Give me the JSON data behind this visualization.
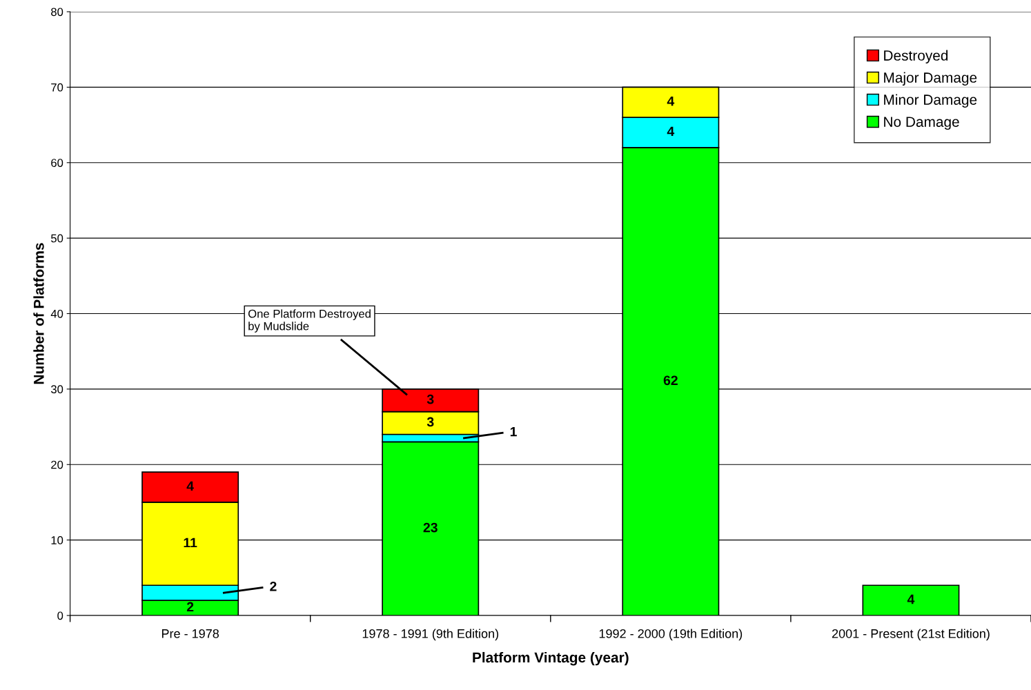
{
  "chart_data": {
    "type": "bar",
    "stacked": true,
    "xlabel": "Platform Vintage (year)",
    "ylabel": "Number of Platforms",
    "categories": [
      "Pre - 1978",
      "1978 - 1991 (9th Edition)",
      "1992 - 2000 (19th Edition)",
      "2001 - Present (21st Edition)"
    ],
    "series": [
      {
        "name": "No Damage",
        "color": "#00ff00",
        "values": [
          2,
          23,
          62,
          4
        ]
      },
      {
        "name": "Minor Damage",
        "color": "#00ffff",
        "values": [
          2,
          1,
          4,
          null
        ]
      },
      {
        "name": "Major Damage",
        "color": "#ffff00",
        "values": [
          11,
          3,
          4,
          null
        ]
      },
      {
        "name": "Destroyed",
        "color": "#ff0000",
        "values": [
          4,
          3,
          null,
          null
        ]
      }
    ],
    "ylim": [
      0,
      80
    ],
    "yticks": [
      0,
      10,
      20,
      30,
      40,
      50,
      60,
      70,
      80
    ],
    "grid": "y",
    "legend": "top right",
    "data_labels": true,
    "annotations": [
      "One Platform Destroyed\nby Mudslide"
    ]
  }
}
